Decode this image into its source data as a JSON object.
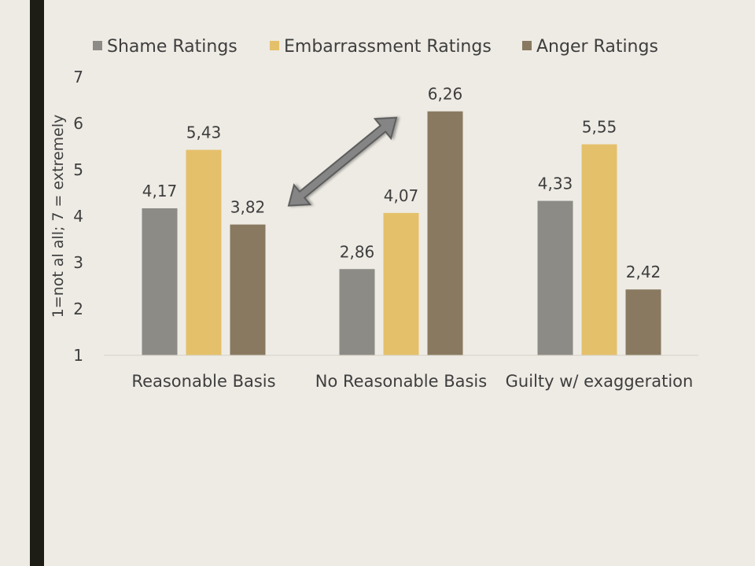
{
  "chart_data": {
    "type": "bar",
    "title": "",
    "xlabel": "",
    "ylabel": "1=not al all; 7 = extremely",
    "ylim": [
      1,
      7
    ],
    "yticks": [
      "1",
      "2",
      "3",
      "4",
      "5",
      "6",
      "7"
    ],
    "categories": [
      "Reasonable Basis",
      "No Reasonable Basis",
      "Guilty w/ exaggeration"
    ],
    "series": [
      {
        "name": "Shame Ratings",
        "color": "#8C8B85",
        "values": [
          4.17,
          2.86,
          4.33
        ],
        "labels": [
          "4,17",
          "2,86",
          "4,33"
        ]
      },
      {
        "name": "Embarrassment Ratings",
        "color": "#E5C06A",
        "values": [
          5.43,
          4.07,
          5.55
        ],
        "labels": [
          "5,43",
          "4,07",
          "5,55"
        ]
      },
      {
        "name": "Anger Ratings",
        "color": "#887960",
        "values": [
          3.82,
          6.26,
          2.42
        ],
        "labels": [
          "3,82",
          "6,26",
          "2,42"
        ]
      }
    ],
    "legend": "top",
    "grid": false,
    "annotations": [
      {
        "type": "double-arrow",
        "from": {
          "category": "Reasonable Basis",
          "series": "Anger Ratings"
        },
        "to": {
          "category": "No Reasonable Basis",
          "series": "Anger Ratings"
        }
      }
    ]
  }
}
